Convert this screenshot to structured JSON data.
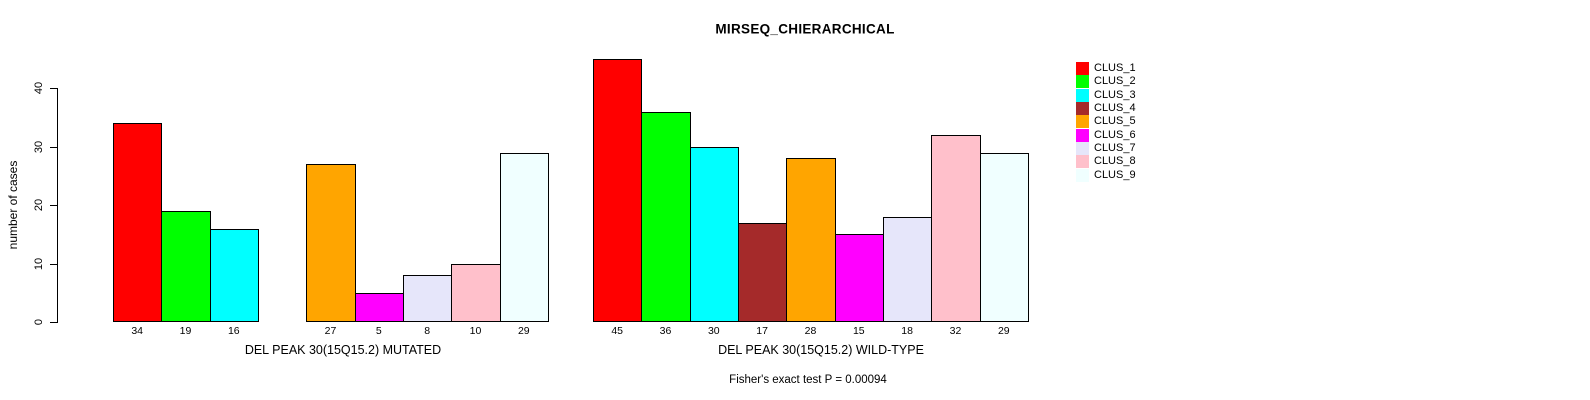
{
  "chart_data": {
    "type": "bar",
    "title": "MIRSEQ_CHIERARCHICAL",
    "ylabel": "number of cases",
    "ylim": [
      0,
      45
    ],
    "yticks": [
      0,
      10,
      20,
      30,
      40
    ],
    "grid": false,
    "legend_position": "right",
    "categories": [
      "CLUS_1",
      "CLUS_2",
      "CLUS_3",
      "CLUS_4",
      "CLUS_5",
      "CLUS_6",
      "CLUS_7",
      "CLUS_8",
      "CLUS_9"
    ],
    "colors": [
      "#FF0000",
      "#00FF00",
      "#00FFFF",
      "#A52A2A",
      "#FFA500",
      "#FF00FF",
      "#E6E6FA",
      "#FFC0CB",
      "#F0FFFF"
    ],
    "bar_border_color": "#000000",
    "groups": [
      {
        "xlabel": "DEL PEAK 30(15Q15.2) MUTATED",
        "values": [
          34,
          19,
          16,
          0,
          27,
          5,
          8,
          10,
          29
        ]
      },
      {
        "xlabel": "DEL PEAK 30(15Q15.2) WILD-TYPE",
        "values": [
          45,
          36,
          30,
          17,
          28,
          15,
          18,
          32,
          29
        ]
      }
    ],
    "annotation": "Fisher's exact test P = 0.00094"
  }
}
